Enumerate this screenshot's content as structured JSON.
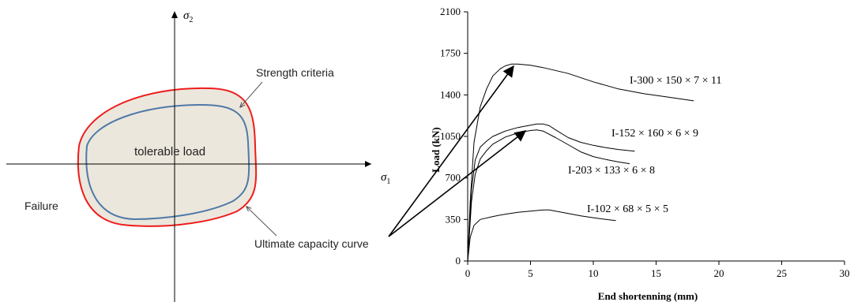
{
  "diagram": {
    "axis_x_label": "σ",
    "axis_x_sub": "1",
    "axis_y_label": "σ",
    "axis_y_sub": "2",
    "region_label": "tolerable load",
    "inner_curve_label": "Strength criteria",
    "outer_curve_label": "Ultimate capacity curve",
    "outside_label": "Failure",
    "colors": {
      "outer_curve": "#ee1c1c",
      "inner_curve": "#4f79a8",
      "region_fill": "#ece7dc",
      "axis": "#000000"
    }
  },
  "chart_data": {
    "type": "line",
    "title": "",
    "xlabel": "End shortenning (mm)",
    "ylabel": "Load (kN)",
    "xlim": [
      0,
      30
    ],
    "ylim": [
      0,
      2100
    ],
    "xticks": [
      0,
      5,
      10,
      15,
      20,
      25,
      30
    ],
    "yticks": [
      0,
      350,
      700,
      1050,
      1400,
      1750,
      2100
    ],
    "grid": false,
    "series": [
      {
        "name": "I-300 × 150 × 7 × 11",
        "x": [
          0,
          0.2,
          0.5,
          1.0,
          1.5,
          2.0,
          2.6,
          3.0,
          3.5,
          4.0,
          5.0,
          6.0,
          8.0,
          10.0,
          12.0,
          14.0,
          16.0,
          18.0
        ],
        "y": [
          0,
          500,
          1000,
          1300,
          1450,
          1560,
          1620,
          1645,
          1660,
          1660,
          1650,
          1630,
          1580,
          1510,
          1450,
          1410,
          1380,
          1350
        ]
      },
      {
        "name": "I-152 × 160 × 6 × 9",
        "x": [
          0,
          0.3,
          0.6,
          1.0,
          1.5,
          2.0,
          3.0,
          4.0,
          5.0,
          5.5,
          6.0,
          6.5,
          7.0,
          8.0,
          9.0,
          10.0,
          11.0,
          12.0,
          13.3
        ],
        "y": [
          0,
          600,
          850,
          960,
          1010,
          1050,
          1095,
          1125,
          1145,
          1155,
          1155,
          1140,
          1105,
          1040,
          1000,
          975,
          955,
          940,
          925
        ]
      },
      {
        "name": "I-203 × 133 × 6 × 8",
        "x": [
          0,
          0.3,
          0.6,
          1.0,
          1.5,
          2.0,
          3.0,
          4.0,
          5.0,
          5.5,
          6.0,
          7.0,
          8.0,
          9.0,
          10.0,
          11.0,
          12.0,
          12.9
        ],
        "y": [
          0,
          500,
          730,
          860,
          930,
          985,
          1045,
          1080,
          1100,
          1105,
          1095,
          1040,
          980,
          920,
          880,
          855,
          835,
          820
        ]
      },
      {
        "name": "I-102 × 68 × 5 × 5",
        "x": [
          0,
          0.2,
          0.5,
          1.0,
          2.0,
          3.0,
          4.0,
          5.0,
          6.0,
          6.5,
          7.0,
          8.0,
          9.0,
          10.0,
          11.0,
          11.8
        ],
        "y": [
          0,
          200,
          300,
          350,
          375,
          395,
          410,
          420,
          430,
          430,
          420,
          400,
          380,
          365,
          350,
          340
        ]
      }
    ],
    "annotations": [
      "I-300 × 150 × 7 × 11",
      "I-152 × 160 × 6 × 9",
      "I-203 × 133 × 6 × 8",
      "I-102 × 68 × 5 × 5"
    ]
  }
}
